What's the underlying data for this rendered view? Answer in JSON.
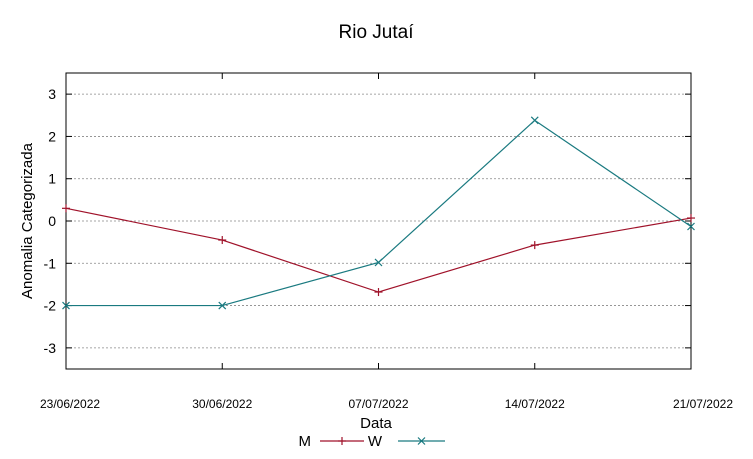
{
  "chart_data": {
    "type": "line",
    "title": "Rio Jutaí",
    "xlabel": "Data",
    "ylabel": "Anomalia Categorizada",
    "x": [
      "23/06/2022",
      "30/06/2022",
      "07/07/2022",
      "14/07/2022",
      "21/07/2022"
    ],
    "y_ticks": [
      "3",
      "2",
      "1",
      "0",
      "-1",
      "-2",
      "-3"
    ],
    "ylim": [
      -3.5,
      3.5
    ],
    "grid": true,
    "legend_position": "bottom",
    "series": [
      {
        "name": "M",
        "color": "#a0122a",
        "marker": "plus",
        "values": [
          0.3,
          -0.45,
          -1.68,
          -0.57,
          0.07
        ]
      },
      {
        "name": "W",
        "color": "#1a7a80",
        "marker": "cross",
        "values": [
          -2.0,
          -2.0,
          -0.98,
          2.38,
          -0.13
        ]
      }
    ]
  }
}
